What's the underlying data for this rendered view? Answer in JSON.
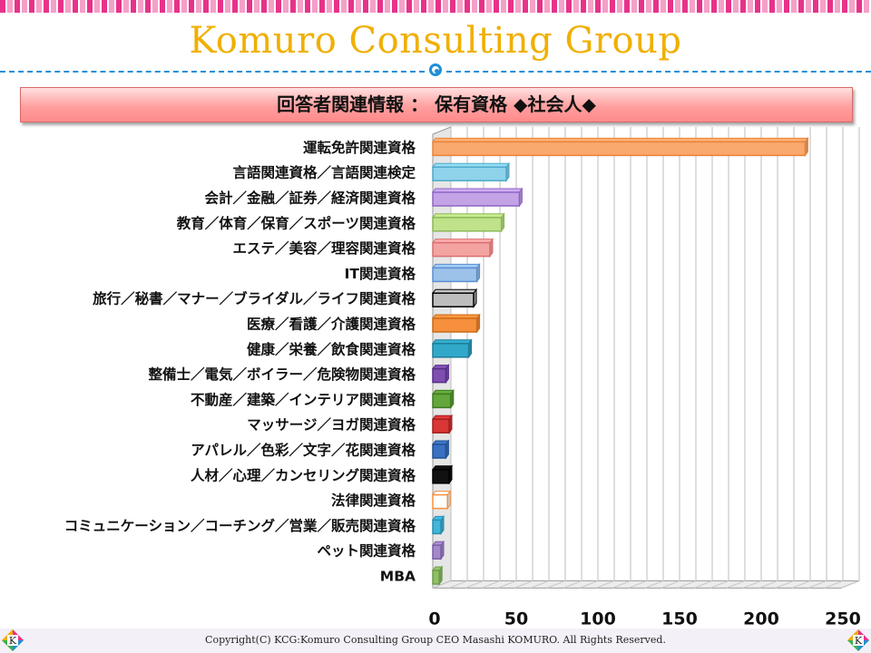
{
  "header": {
    "brand_title": "Komuro Consulting Group",
    "section_title": "回答者関連情報 ： 保有資格 ◆社会人◆"
  },
  "footer": {
    "copyright": "Copyright(C)  KCG:Komuro Consulting Group  CEO Masashi KOMURO. All Rights Reserved.",
    "logo_letter": "K"
  },
  "colors": {
    "brand": "#f0b000",
    "accent_line": "#1f8fd6",
    "banner": "#ff9f9f",
    "stripe": "#e8328a"
  },
  "chart_data": {
    "type": "bar",
    "orientation": "horizontal",
    "categories": [
      "運転免許関連資格",
      "言語関連資格／言語関連検定",
      "会計／金融／証券／経済関連資格",
      "教育／体育／保育／スポーツ関連資格",
      "エステ／美容／理容関連資格",
      "IT関連資格",
      "旅行／秘書／マナー／ブライダル／ライフ関連資格",
      "医療／看護／介護関連資格",
      "健康／栄養／飲食関連資格",
      "整備士／電気／ボイラー／危険物関連資格",
      "不動産／建築／インテリア関連資格",
      "マッサージ／ヨガ関連資格",
      "アパレル／色彩／文字／花関連資格",
      "人材／心理／カンセリング関連資格",
      "法律関連資格",
      "コミュニケーション／コーチング／営業／販売関連資格",
      "ペット関連資格",
      "MBA"
    ],
    "values": [
      228,
      45,
      53,
      42,
      35,
      27,
      25,
      27,
      22,
      8,
      11,
      10,
      8,
      10,
      9,
      5,
      5,
      4
    ],
    "colors": [
      "#f9a86e",
      "#8fd3ea",
      "#c3a3e6",
      "#bfe28a",
      "#f4a3a3",
      "#9cc2ea",
      "#bdbdbd",
      "#f7903c",
      "#31a8c9",
      "#7f4fb0",
      "#62a63c",
      "#d93636",
      "#3a70c2",
      "#111111",
      "#ffffff",
      "#42b5d8",
      "#a48ac8",
      "#8fbf66"
    ],
    "border_colors": [
      "#e8843a",
      "#4ea8c8",
      "#8f65c4",
      "#8cb858",
      "#d87070",
      "#5a8fcf",
      "#000000",
      "#c86a1a",
      "#1d7c97",
      "#552f85",
      "#3f7a20",
      "#a01e1e",
      "#23508f",
      "#000000",
      "#f7903c",
      "#2b8fb0",
      "#7a5ea8",
      "#6f9a4a"
    ],
    "xticks": [
      0,
      50,
      100,
      150,
      200,
      250
    ],
    "xlim": [
      0,
      250
    ],
    "grid": true
  }
}
